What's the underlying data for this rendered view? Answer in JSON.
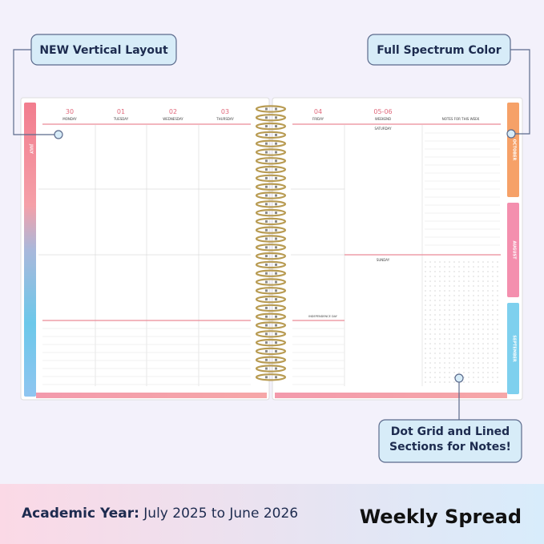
{
  "callouts": {
    "layout": "NEW Vertical Layout",
    "color": "Full Spectrum Color",
    "notes": "Dot Grid and Lined Sections for Notes!"
  },
  "footer": {
    "label": "Academic Year:",
    "range": "July 2025 to June 2026",
    "title": "Weekly Spread"
  },
  "left_page": {
    "days": [
      {
        "date": "30",
        "name": "MONDAY"
      },
      {
        "date": "01",
        "name": "TUESDAY"
      },
      {
        "date": "02",
        "name": "WEDNESDAY"
      },
      {
        "date": "03",
        "name": "THURSDAY"
      }
    ],
    "tab": "JULY"
  },
  "right_page": {
    "days": [
      {
        "date": "04",
        "name": "FRIDAY"
      },
      {
        "date": "05-06",
        "name": "WEEKEND"
      }
    ],
    "notes_header": "NOTES FOR THIS WEEK",
    "saturday": "SATURDAY",
    "sunday": "SUNDAY",
    "holiday": "INDEPENDENCE DAY",
    "tabs": [
      "OCTOBER",
      "AUGUST",
      "SEPTEMBER"
    ]
  }
}
